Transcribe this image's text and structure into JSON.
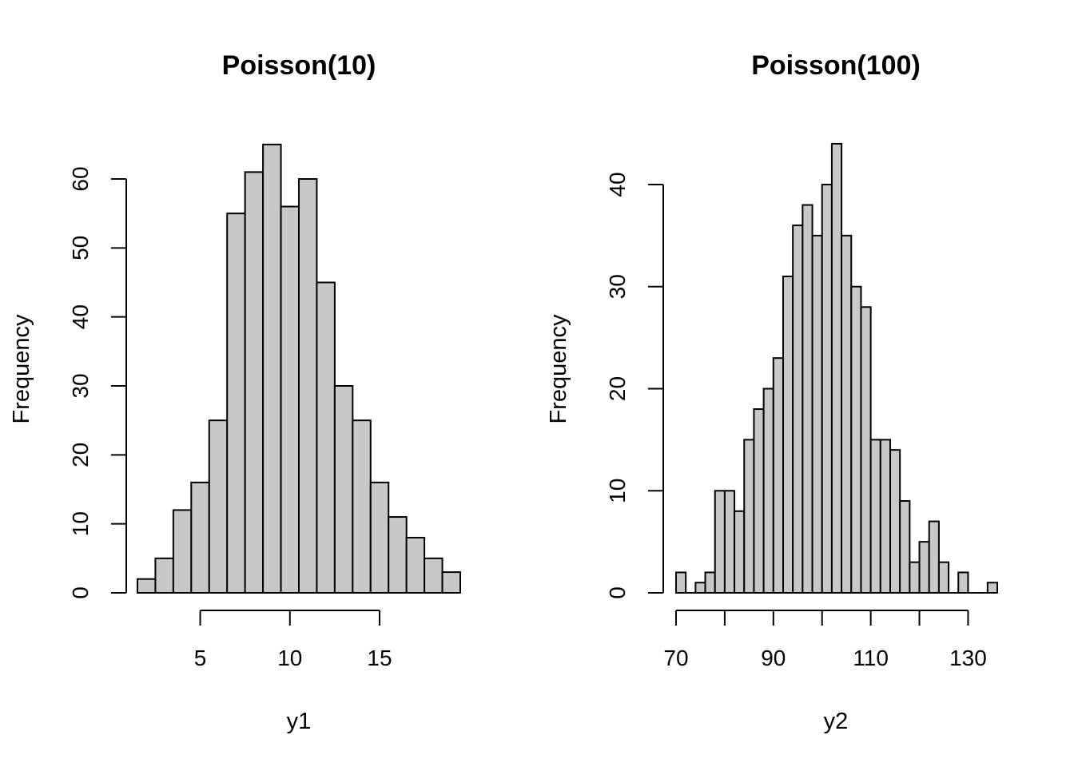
{
  "chart_data": [
    {
      "type": "bar",
      "title": "Poisson(10)",
      "xlabel": "y1",
      "ylabel": "Frequency",
      "x": [
        2,
        3,
        4,
        5,
        6,
        7,
        8,
        9,
        10,
        11,
        12,
        13,
        14,
        15,
        16,
        17,
        18,
        19
      ],
      "values": [
        2,
        5,
        12,
        16,
        25,
        55,
        61,
        65,
        56,
        60,
        45,
        30,
        25,
        16,
        11,
        8,
        5,
        3
      ],
      "xlim": [
        1.5,
        19.5
      ],
      "ylim": [
        0,
        60
      ],
      "xticks": [
        5,
        10,
        15
      ],
      "xtick_labels": [
        "5",
        "10",
        "15"
      ],
      "yticks": [
        0,
        10,
        20,
        30,
        40,
        50,
        60
      ],
      "ytick_labels": [
        "0",
        "10",
        "20",
        "30",
        "40",
        "50",
        "60"
      ],
      "bar_color": "#c8c8c8",
      "grid": false,
      "legend": false
    },
    {
      "type": "bar",
      "title": "Poisson(100)",
      "xlabel": "y2",
      "ylabel": "Frequency",
      "bin_edges": [
        70,
        72,
        74,
        76,
        78,
        80,
        82,
        84,
        86,
        88,
        90,
        92,
        94,
        96,
        98,
        100,
        102,
        104,
        106,
        108,
        110,
        112,
        114,
        116,
        118,
        120,
        122,
        124,
        126,
        128,
        130,
        132,
        134,
        136
      ],
      "values": [
        2,
        0,
        1,
        2,
        10,
        10,
        8,
        15,
        18,
        20,
        23,
        31,
        36,
        38,
        35,
        40,
        44,
        35,
        30,
        28,
        15,
        15,
        14,
        9,
        3,
        5,
        7,
        3,
        0,
        2,
        0,
        0,
        1
      ],
      "xlim": [
        70,
        136
      ],
      "ylim": [
        0,
        40
      ],
      "xticks": [
        70,
        80,
        90,
        100,
        110,
        120,
        130
      ],
      "xtick_labels": [
        "70",
        "",
        "90",
        "",
        "110",
        "",
        "130"
      ],
      "yticks": [
        0,
        10,
        20,
        30,
        40
      ],
      "ytick_labels": [
        "0",
        "10",
        "20",
        "30",
        "40"
      ],
      "bar_color": "#c8c8c8",
      "grid": false,
      "legend": false
    }
  ]
}
